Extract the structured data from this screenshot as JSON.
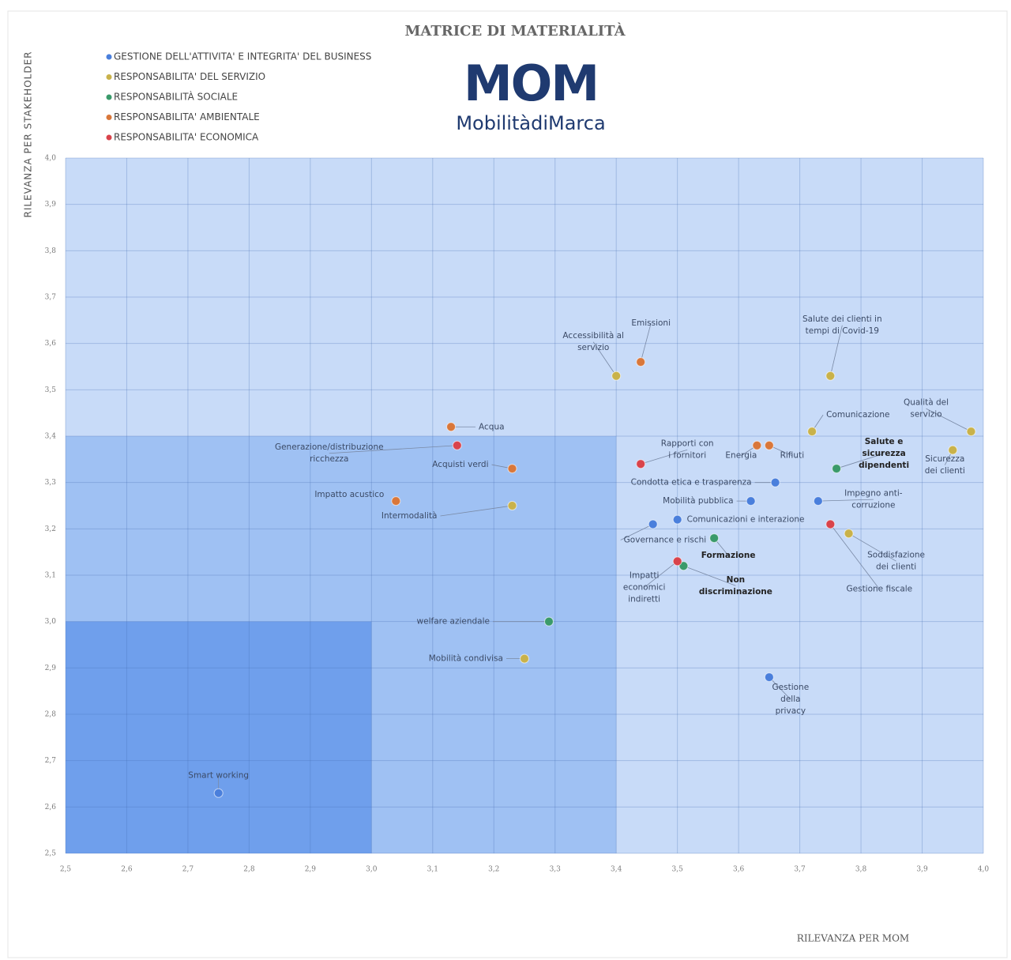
{
  "chart_data": {
    "type": "scatter",
    "title": "MATRICE DI MATERIALITÀ",
    "logo_text": "MOM",
    "logo_subtext": "MobilitàdiMarca",
    "x_label": "RILEVANZA PER MOM",
    "y_label": "RILEVANZA PER STAKEHOLDER",
    "xlim": [
      2.5,
      4.0
    ],
    "ylim": [
      2.5,
      4.0
    ],
    "xticks": [
      {
        "value": 2.5,
        "label": "2,5"
      },
      {
        "value": 2.6,
        "label": "2,6"
      },
      {
        "value": 2.7,
        "label": "2,7"
      },
      {
        "value": 2.8,
        "label": "2,8"
      },
      {
        "value": 2.9,
        "label": "2,9"
      },
      {
        "value": 3.0,
        "label": "3,0"
      },
      {
        "value": 3.1,
        "label": "3,1"
      },
      {
        "value": 3.2,
        "label": "3,2"
      },
      {
        "value": 3.3,
        "label": "3,3"
      },
      {
        "value": 3.4,
        "label": "3,4"
      },
      {
        "value": 3.5,
        "label": "3,5"
      },
      {
        "value": 3.6,
        "label": "3,6"
      },
      {
        "value": 3.7,
        "label": "3,7"
      },
      {
        "value": 3.8,
        "label": "3,8"
      },
      {
        "value": 3.9,
        "label": "3,9"
      },
      {
        "value": 4.0,
        "label": "4,0"
      }
    ],
    "yticks": [
      {
        "value": 2.5,
        "label": "2,5"
      },
      {
        "value": 2.6,
        "label": "2,6"
      },
      {
        "value": 2.7,
        "label": "2,7"
      },
      {
        "value": 2.8,
        "label": "2,8"
      },
      {
        "value": 2.9,
        "label": "2,9"
      },
      {
        "value": 3.0,
        "label": "3,0"
      },
      {
        "value": 3.1,
        "label": "3,1"
      },
      {
        "value": 3.2,
        "label": "3,2"
      },
      {
        "value": 3.3,
        "label": "3,3"
      },
      {
        "value": 3.4,
        "label": "3,4"
      },
      {
        "value": 3.5,
        "label": "3,5"
      },
      {
        "value": 3.6,
        "label": "3,6"
      },
      {
        "value": 3.7,
        "label": "3,7"
      },
      {
        "value": 3.8,
        "label": "3,8"
      },
      {
        "value": 3.9,
        "label": "3,9"
      },
      {
        "value": 4.0,
        "label": "4,0"
      }
    ],
    "grid": true,
    "plot_color": "#c8dbf8",
    "zones": [
      {
        "xlim": [
          2.5,
          3.4
        ],
        "ylim": [
          2.5,
          3.4
        ],
        "color": "#9fc1f3"
      },
      {
        "xlim": [
          2.5,
          3.0
        ],
        "ylim": [
          2.5,
          3.0
        ],
        "color": "#6f9fec"
      }
    ],
    "series": [
      {
        "name": "GESTIONE DELL'ATTIVITA' E INTEGRITA' DEL BUSINESS",
        "color": "#4a7fdc",
        "points": [
          {
            "label": "Smart working",
            "x": 2.75,
            "y": 2.63
          },
          {
            "label": "Condotta etica e trasparenza",
            "x": 3.66,
            "y": 3.3
          },
          {
            "label": "Mobilità pubblica",
            "x": 3.62,
            "y": 3.26
          },
          {
            "label": "Impegno anti-\ncorruzione",
            "x": 3.73,
            "y": 3.26
          },
          {
            "label": "Comunicazioni e interazione",
            "x": 3.5,
            "y": 3.22
          },
          {
            "label": "Governance e rischi",
            "x": 3.46,
            "y": 3.21
          },
          {
            "label": "Gestione\ndella\nprivacy",
            "x": 3.65,
            "y": 2.88
          }
        ]
      },
      {
        "name": "RESPONSABILITA' DEL SERVIZIO",
        "color": "#c9b24a",
        "points": [
          {
            "label": "Mobilità condivisa",
            "x": 3.25,
            "y": 2.92
          },
          {
            "label": "Intermodalità",
            "x": 3.23,
            "y": 3.25
          },
          {
            "label": "Accessibilità al\nservizio",
            "x": 3.4,
            "y": 3.53
          },
          {
            "label": "Salute dei clienti in\ntempi di Covid-19",
            "x": 3.75,
            "y": 3.53
          },
          {
            "label": "Comunicazione",
            "x": 3.72,
            "y": 3.41
          },
          {
            "label": "Qualità del\nservizio",
            "x": 3.98,
            "y": 3.41
          },
          {
            "label": "Sicurezza\ndei clienti",
            "x": 3.95,
            "y": 3.37
          },
          {
            "label": "Soddisfazione\ndei clienti",
            "x": 3.78,
            "y": 3.19
          }
        ]
      },
      {
        "name": "RESPONSABILITÀ SOCIALE",
        "color": "#3a9a6a",
        "points": [
          {
            "label": "welfare aziendale",
            "x": 3.29,
            "y": 3.0
          },
          {
            "label": "Salute e\nsicurezza\ndipendenti",
            "x": 3.76,
            "y": 3.33
          },
          {
            "label": "Formazione",
            "x": 3.56,
            "y": 3.18
          },
          {
            "label": "Non\ndiscriminazione",
            "x": 3.51,
            "y": 3.12
          }
        ]
      },
      {
        "name": "RESPONSABILITA' AMBIENTALE",
        "color": "#d9773a",
        "points": [
          {
            "label": "Impatto acustico",
            "x": 3.04,
            "y": 3.26
          },
          {
            "label": "Acquisti verdi",
            "x": 3.23,
            "y": 3.33
          },
          {
            "label": "Acqua",
            "x": 3.13,
            "y": 3.42
          },
          {
            "label": "Emissioni",
            "x": 3.44,
            "y": 3.56
          },
          {
            "label": "Energia",
            "x": 3.63,
            "y": 3.38
          },
          {
            "label": "Rifiuti",
            "x": 3.65,
            "y": 3.38
          }
        ]
      },
      {
        "name": "RESPONSABILITA' ECONOMICA",
        "color": "#d9434b",
        "points": [
          {
            "label": "Generazione/distribuzione\nricchezza",
            "x": 3.14,
            "y": 3.38
          },
          {
            "label": "Rapporti con\ni fornitori",
            "x": 3.44,
            "y": 3.34
          },
          {
            "label": "Gestione fiscale",
            "x": 3.75,
            "y": 3.21
          },
          {
            "label": "Impatti\neconomici\nindiretti",
            "x": 3.5,
            "y": 3.13
          }
        ]
      }
    ]
  }
}
